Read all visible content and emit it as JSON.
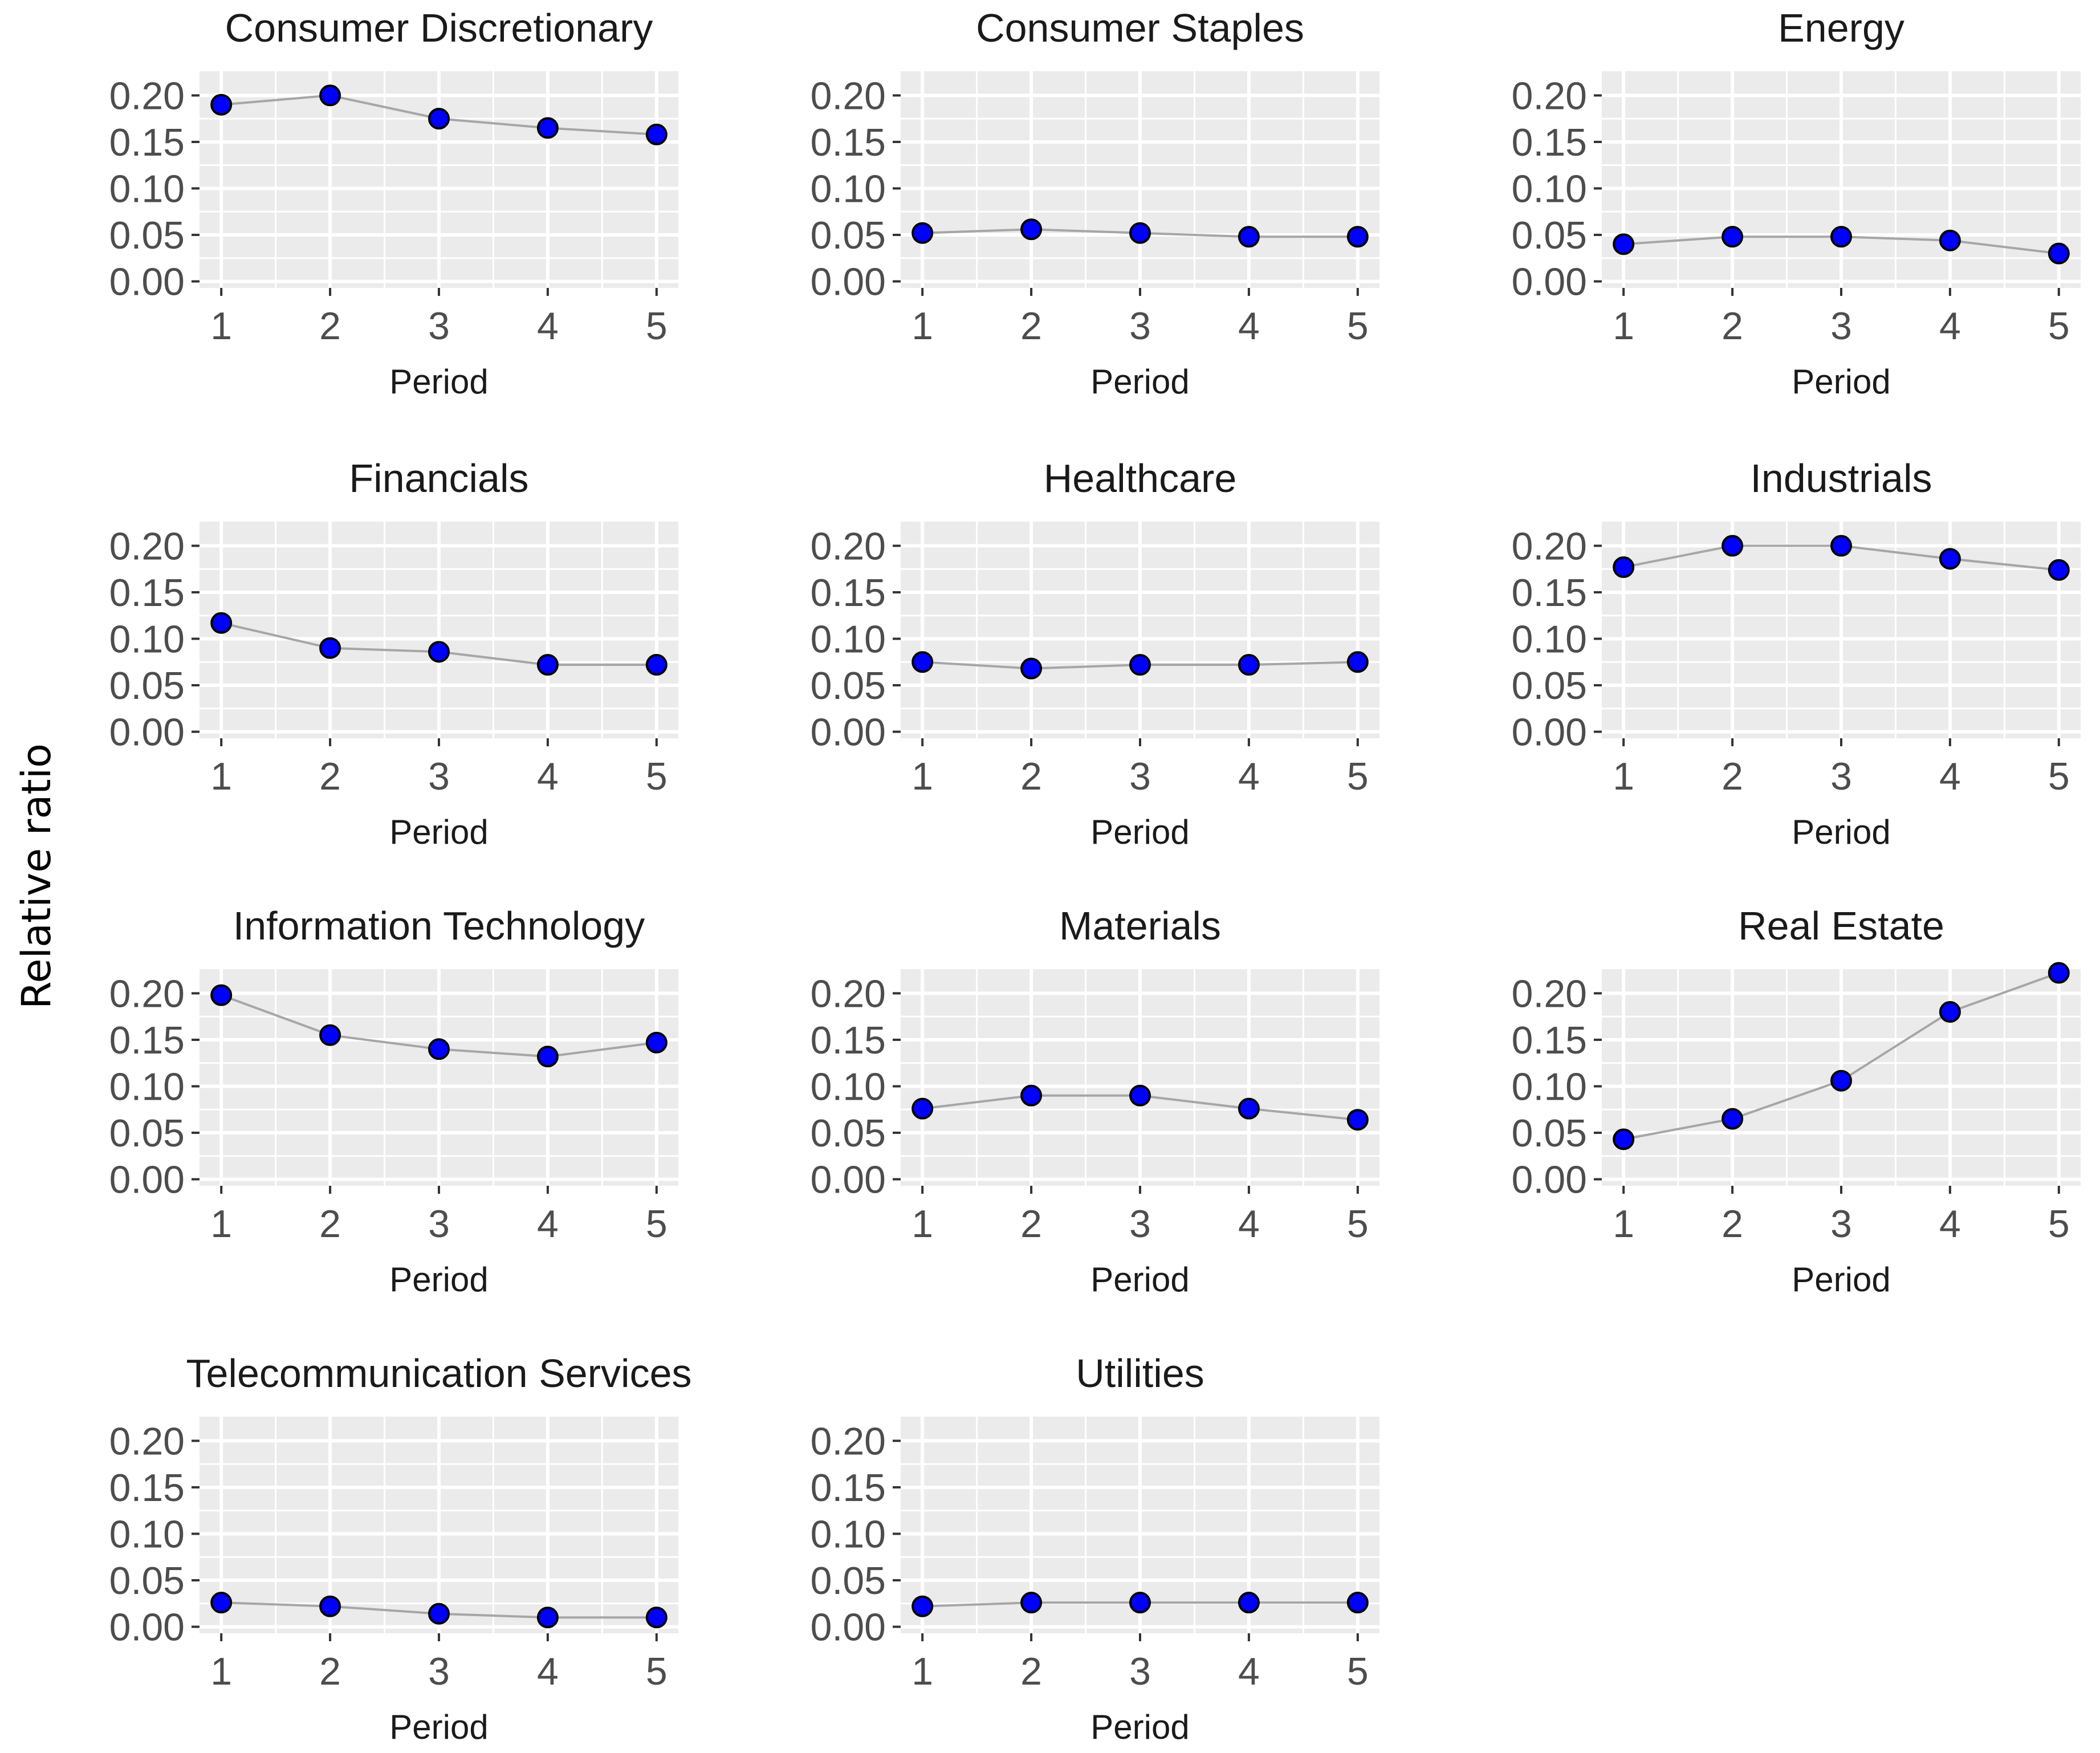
{
  "chart_data": {
    "type": "line",
    "facet_layout": "4 rows x 3 columns, panels filled left to right",
    "ylabel": "Relative ratio",
    "xlabel": "Period",
    "x": [
      1,
      2,
      3,
      4,
      5
    ],
    "x_tick_labels": [
      "1",
      "2",
      "3",
      "4",
      "5"
    ],
    "y_ticks": [
      0.0,
      0.05,
      0.1,
      0.15,
      0.2
    ],
    "y_tick_labels": [
      "0.00",
      "0.05",
      "0.10",
      "0.15",
      "0.20"
    ],
    "ylim": [
      -0.007,
      0.226
    ],
    "xlim": [
      0.8,
      5.2
    ],
    "grid": true,
    "panel_background": "#ebebeb",
    "grid_color": "#ffffff",
    "line_color": "#a6a6a6",
    "point_fill": "#0000ff",
    "point_stroke": "#000000",
    "series": [
      {
        "name": "Consumer Discretionary",
        "values": [
          0.19,
          0.2,
          0.175,
          0.165,
          0.158
        ]
      },
      {
        "name": "Consumer Staples",
        "values": [
          0.052,
          0.056,
          0.052,
          0.048,
          0.048
        ]
      },
      {
        "name": "Energy",
        "values": [
          0.04,
          0.048,
          0.048,
          0.044,
          0.03
        ]
      },
      {
        "name": "Financials",
        "values": [
          0.117,
          0.09,
          0.086,
          0.072,
          0.072
        ]
      },
      {
        "name": "Healthcare",
        "values": [
          0.075,
          0.068,
          0.072,
          0.072,
          0.075
        ]
      },
      {
        "name": "Industrials",
        "values": [
          0.177,
          0.2,
          0.2,
          0.186,
          0.174
        ]
      },
      {
        "name": "Information Technology",
        "values": [
          0.198,
          0.155,
          0.14,
          0.132,
          0.147
        ]
      },
      {
        "name": "Materials",
        "values": [
          0.076,
          0.09,
          0.09,
          0.076,
          0.064
        ]
      },
      {
        "name": "Real Estate",
        "values": [
          0.043,
          0.065,
          0.106,
          0.18,
          0.222
        ]
      },
      {
        "name": "Telecommunication Services",
        "values": [
          0.026,
          0.022,
          0.014,
          0.01,
          0.01
        ]
      },
      {
        "name": "Utilities",
        "values": [
          0.022,
          0.026,
          0.026,
          0.026,
          0.026
        ]
      }
    ]
  }
}
